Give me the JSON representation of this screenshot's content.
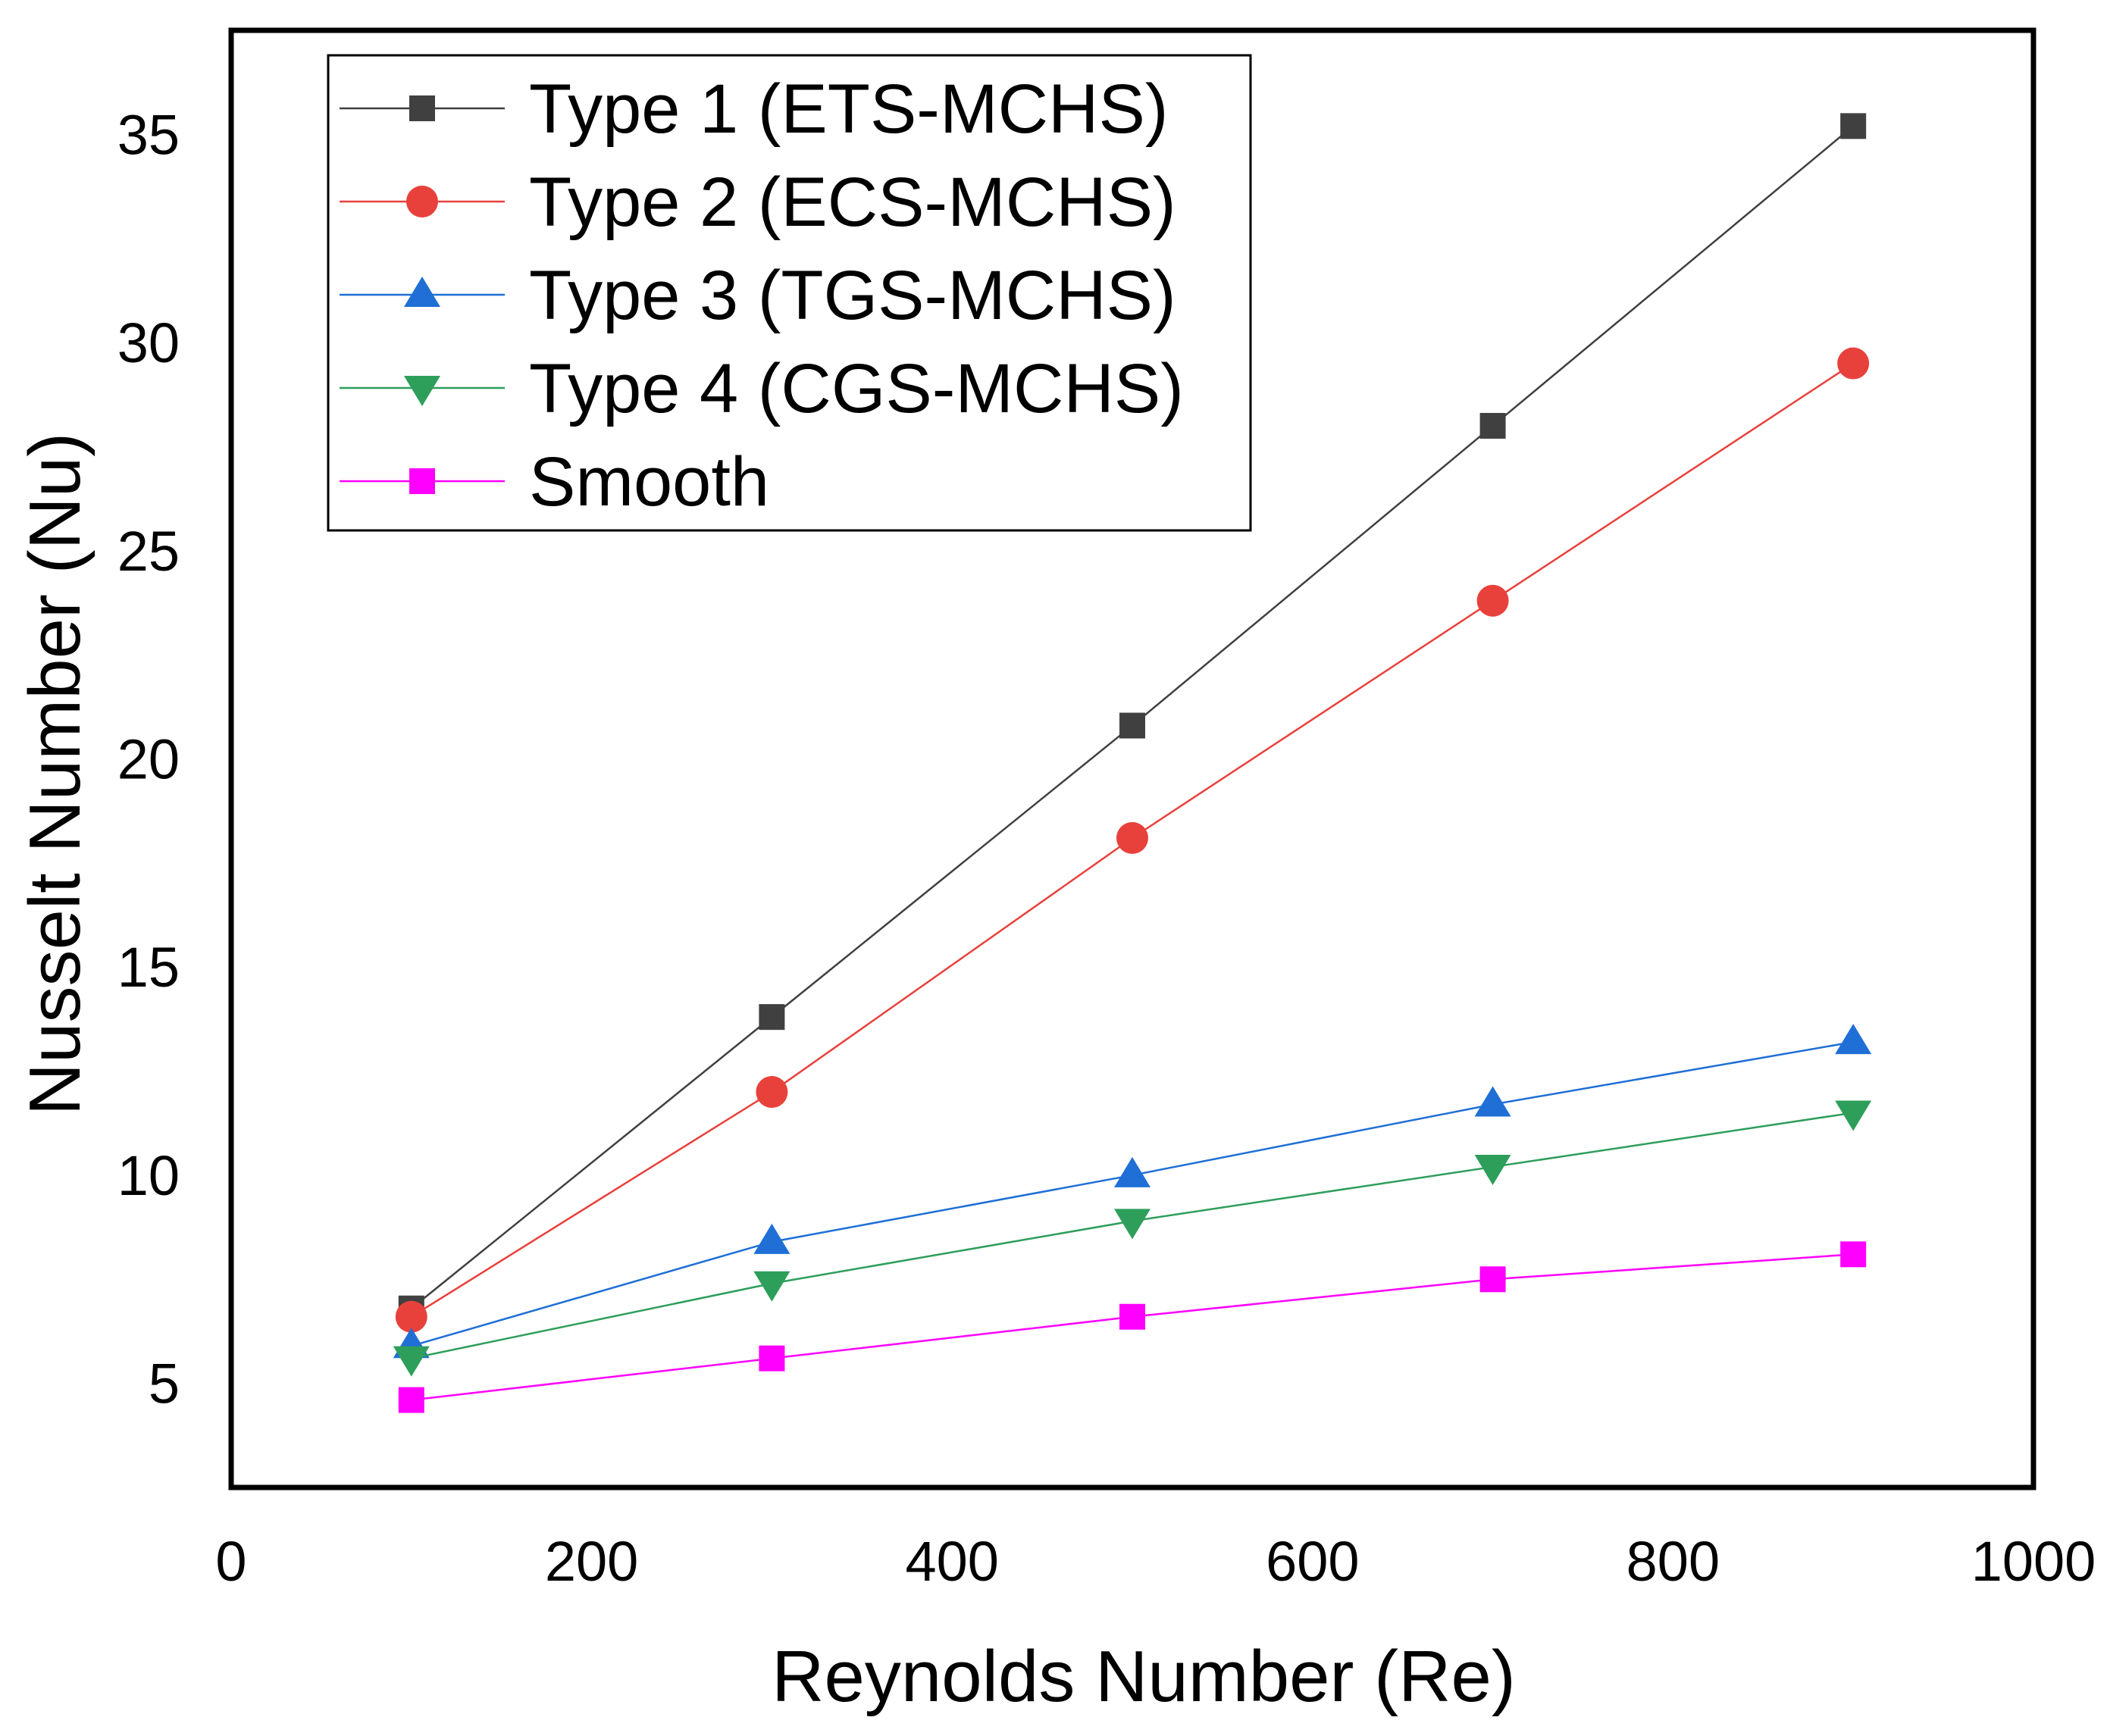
{
  "chart_data": {
    "type": "line",
    "title": "",
    "xlabel": "Reynolds Number (Re)",
    "ylabel": "Nusselt Number (Nu)",
    "xlim": [
      0,
      1000
    ],
    "ylim": [
      2.5,
      37.5
    ],
    "xticks": [
      0,
      200,
      400,
      600,
      800,
      1000
    ],
    "yticks": [
      5,
      10,
      15,
      20,
      25,
      30,
      35
    ],
    "grid": false,
    "legend_position": "top-left",
    "x": [
      100,
      300,
      500,
      700,
      900
    ],
    "series": [
      {
        "name": "Type 1 (ETS-MCHS)",
        "values": [
          6.8,
          13.8,
          20.8,
          28.0,
          35.2
        ],
        "color": "#404040",
        "marker": "square"
      },
      {
        "name": "Type 2 (ECS-MCHS)",
        "values": [
          6.6,
          12.0,
          18.1,
          23.8,
          29.5
        ],
        "color": "#e8413c",
        "marker": "circle"
      },
      {
        "name": "Type 3 (TGS-MCHS)",
        "values": [
          5.9,
          8.4,
          10.0,
          11.7,
          13.2
        ],
        "color": "#1f6fd6",
        "marker": "triangle-up"
      },
      {
        "name": "Type 4 (CGS-MCHS)",
        "values": [
          5.6,
          7.4,
          8.9,
          10.2,
          11.5
        ],
        "color": "#2e9e5b",
        "marker": "triangle-down"
      },
      {
        "name": "Smooth",
        "values": [
          4.6,
          5.6,
          6.6,
          7.5,
          8.1
        ],
        "color": "#ff00ff",
        "marker": "square"
      }
    ]
  }
}
